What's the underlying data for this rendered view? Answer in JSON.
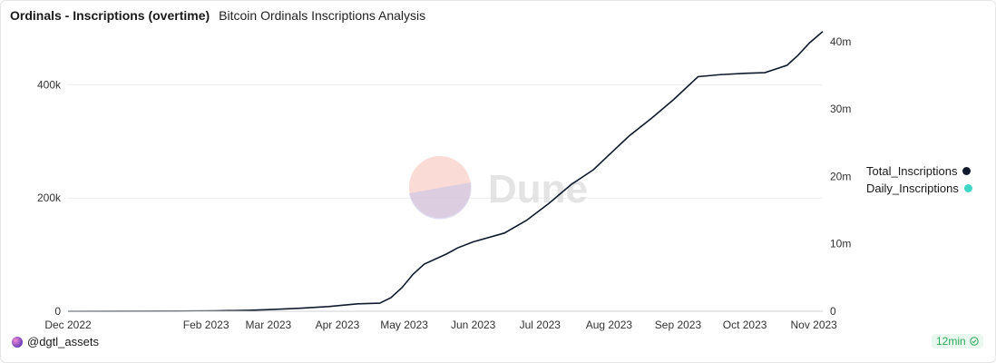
{
  "header": {
    "title": "Ordinals - Inscriptions (overtime)",
    "subtitle": "Bitcoin Ordinals Inscriptions Analysis"
  },
  "footer": {
    "author": "@dgtl_assets",
    "refresh_label": "12min"
  },
  "watermark": "Dune",
  "chart_data": {
    "type": "bar",
    "x_axis": {
      "type": "date",
      "range": [
        "2022-12-01",
        "2023-11-05"
      ],
      "tick_labels": [
        "Dec 2022",
        "Feb 2023",
        "Mar 2023",
        "Apr 2023",
        "May 2023",
        "Jun 2023",
        "Jul 2023",
        "Aug 2023",
        "Sep 2023",
        "Oct 2023",
        "Nov 2023"
      ],
      "tick_dates": [
        "2022-12-01",
        "2023-02-01",
        "2023-03-01",
        "2023-04-01",
        "2023-05-01",
        "2023-06-01",
        "2023-07-01",
        "2023-08-01",
        "2023-09-01",
        "2023-10-01",
        "2023-11-01"
      ]
    },
    "y_left": {
      "range": [
        0,
        500000
      ],
      "ticks": [
        0,
        200000,
        400000
      ],
      "tick_labels": [
        "0",
        "200k",
        "400k"
      ]
    },
    "y_right": {
      "range": [
        0,
        42000000
      ],
      "ticks": [
        0,
        10000000,
        20000000,
        30000000,
        40000000
      ],
      "tick_labels": [
        "0",
        "10m",
        "20m",
        "30m",
        "40m"
      ]
    },
    "grid": true,
    "legend_position": "right",
    "series": [
      {
        "name": "Total_Inscriptions",
        "type": "line",
        "axis": "right",
        "color": "#0f1b2d",
        "points": [
          [
            "2022-12-01",
            0
          ],
          [
            "2023-01-20",
            20000
          ],
          [
            "2023-02-05",
            60000
          ],
          [
            "2023-02-20",
            150000
          ],
          [
            "2023-03-01",
            250000
          ],
          [
            "2023-03-15",
            450000
          ],
          [
            "2023-03-28",
            700000
          ],
          [
            "2023-04-10",
            1100000
          ],
          [
            "2023-04-20",
            1200000
          ],
          [
            "2023-04-25",
            2000000
          ],
          [
            "2023-04-30",
            3500000
          ],
          [
            "2023-05-05",
            5500000
          ],
          [
            "2023-05-10",
            7000000
          ],
          [
            "2023-05-20",
            8500000
          ],
          [
            "2023-05-25",
            9400000
          ],
          [
            "2023-06-01",
            10300000
          ],
          [
            "2023-06-15",
            11600000
          ],
          [
            "2023-06-25",
            13500000
          ],
          [
            "2023-07-05",
            16000000
          ],
          [
            "2023-07-15",
            18800000
          ],
          [
            "2023-07-25",
            21000000
          ],
          [
            "2023-08-01",
            23200000
          ],
          [
            "2023-08-10",
            26000000
          ],
          [
            "2023-08-20",
            28600000
          ],
          [
            "2023-08-30",
            31400000
          ],
          [
            "2023-09-10",
            34800000
          ],
          [
            "2023-09-20",
            35100000
          ],
          [
            "2023-10-01",
            35300000
          ],
          [
            "2023-10-10",
            35400000
          ],
          [
            "2023-10-20",
            36500000
          ],
          [
            "2023-10-25",
            38000000
          ],
          [
            "2023-10-30",
            39800000
          ],
          [
            "2023-11-05",
            41500000
          ]
        ]
      },
      {
        "name": "Daily_Inscriptions",
        "type": "bar",
        "axis": "left",
        "color": "#3fd6c6",
        "start_date": "2022-12-01",
        "values": [
          0,
          0,
          0,
          0,
          0,
          0,
          0,
          0,
          0,
          0,
          0,
          0,
          0,
          0,
          0,
          0,
          0,
          0,
          0,
          0,
          0,
          0,
          0,
          0,
          0,
          0,
          0,
          0,
          0,
          0,
          0,
          0,
          0,
          0,
          0,
          0,
          0,
          0,
          0,
          0,
          0,
          0,
          0,
          0,
          0,
          0,
          0,
          0,
          0,
          0,
          0,
          0,
          0,
          0,
          0,
          0,
          0,
          0,
          0,
          0,
          0,
          0,
          0,
          0,
          0,
          0,
          0,
          0,
          0,
          0,
          0,
          0,
          0,
          0,
          0,
          0,
          0,
          0,
          0,
          0,
          0,
          0,
          0,
          0,
          0,
          0,
          0,
          0,
          0,
          0,
          0,
          0,
          0,
          0,
          0,
          0,
          0,
          0,
          0,
          0,
          0,
          0,
          0,
          0,
          0,
          0,
          0,
          0,
          0,
          0,
          0,
          0,
          0,
          0,
          0,
          0,
          0,
          0,
          0,
          0,
          0,
          0,
          0,
          0,
          0,
          0,
          0,
          0,
          0,
          0,
          0,
          0,
          0,
          0,
          0,
          0,
          0,
          0,
          0,
          0,
          0,
          0,
          0,
          0,
          0,
          0,
          0,
          0,
          0,
          0,
          0,
          0,
          0,
          0,
          0,
          0,
          0,
          0,
          0,
          0,
          0,
          0,
          0,
          0,
          0,
          0,
          0,
          0,
          0,
          0,
          0,
          0,
          0,
          0,
          0,
          0,
          0,
          0,
          0,
          0,
          0,
          0,
          0,
          0,
          0,
          0,
          0,
          0,
          0,
          0,
          0,
          0,
          0,
          0,
          0,
          0,
          0,
          0,
          0,
          0,
          0,
          0,
          0,
          0,
          0,
          0,
          0,
          0,
          0,
          0,
          0,
          0,
          0,
          0,
          0,
          0,
          0,
          0,
          0,
          0,
          0,
          0,
          0,
          0,
          0,
          0,
          0,
          0,
          0,
          0,
          0,
          0,
          0,
          0,
          0,
          0,
          0,
          0,
          0,
          0,
          0,
          0,
          0,
          0,
          0,
          0,
          0,
          0,
          0,
          0,
          0,
          0,
          0,
          0,
          0,
          0,
          0,
          0,
          0,
          0,
          0,
          0,
          0,
          0,
          0,
          0,
          0,
          0,
          0,
          0,
          0,
          0,
          0,
          0,
          0,
          0,
          0,
          0,
          0,
          0,
          0,
          0,
          0,
          0,
          0,
          0,
          0,
          0,
          0,
          0,
          0,
          0,
          0,
          0,
          0,
          0,
          0,
          0,
          0,
          0,
          0,
          0,
          0,
          0,
          0,
          0,
          0,
          0,
          0,
          0,
          0,
          0,
          0,
          0,
          0,
          0,
          0,
          0,
          0,
          0,
          0,
          0,
          0
        ]
      }
    ]
  }
}
